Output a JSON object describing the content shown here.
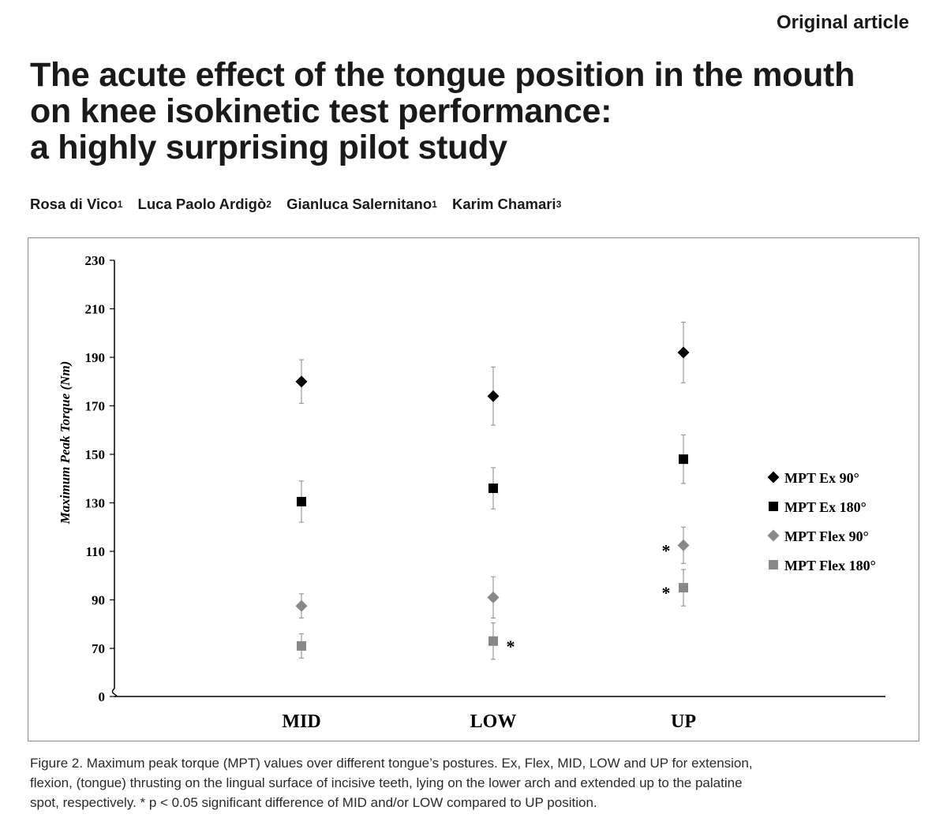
{
  "header": {
    "section": "Original article"
  },
  "title_lines": [
    "The acute effect of the tongue position in the mouth",
    "on knee isokinetic test performance:",
    "a highly surprising pilot study"
  ],
  "authors": [
    {
      "name": "Rosa di Vico",
      "affiliation": "1"
    },
    {
      "name": "Luca Paolo Ardigò",
      "affiliation": "2"
    },
    {
      "name": "Gianluca Salernitano",
      "affiliation": "1"
    },
    {
      "name": "Karim Chamari",
      "affiliation": "3"
    }
  ],
  "chart_data": {
    "type": "scatter",
    "title": "",
    "xlabel": "",
    "ylabel": "Maximum Peak Torque (Nm)",
    "categories": [
      "MID",
      "LOW",
      "UP"
    ],
    "y_ticks": [
      0,
      70,
      90,
      110,
      130,
      150,
      170,
      190,
      210,
      230
    ],
    "ylim": [
      0,
      230
    ],
    "axis_break": true,
    "legend_position": "right",
    "series": [
      {
        "name": "MPT Ex 90°",
        "marker": "diamond",
        "color": "#000000",
        "values": [
          180,
          174,
          192
        ],
        "errors": [
          9,
          12,
          12.5
        ]
      },
      {
        "name": "MPT Ex 180°",
        "marker": "square",
        "color": "#000000",
        "values": [
          130.5,
          136,
          148
        ],
        "errors": [
          8.5,
          8.5,
          10
        ]
      },
      {
        "name": "MPT Flex 90°",
        "marker": "diamond",
        "color": "#888888",
        "values": [
          87.5,
          91,
          112.5
        ],
        "errors": [
          5,
          8.5,
          7.5
        ]
      },
      {
        "name": "MPT Flex 180°",
        "marker": "square",
        "color": "#888888",
        "values": [
          71,
          73,
          95
        ],
        "errors": [
          5,
          7.5,
          7.5
        ]
      }
    ],
    "annotations": [
      {
        "text": "*",
        "category": "LOW",
        "series": "MPT Flex 180°",
        "side": "right"
      },
      {
        "text": "*",
        "category": "UP",
        "series": "MPT Flex 90°",
        "side": "left"
      },
      {
        "text": "*",
        "category": "UP",
        "series": "MPT Flex 180°",
        "side": "left"
      }
    ]
  },
  "caption_lines": [
    "Figure 2. Maximum peak torque (MPT) values over different tongue’s postures. Ex, Flex, MID, LOW and UP for extension,",
    "flexion, (tongue) thrusting on the lingual surface of incisive teeth, lying on the lower arch and extended up to the palatine",
    "spot, respectively. * p < 0.05 significant difference of MID and/or LOW compared to UP position."
  ]
}
